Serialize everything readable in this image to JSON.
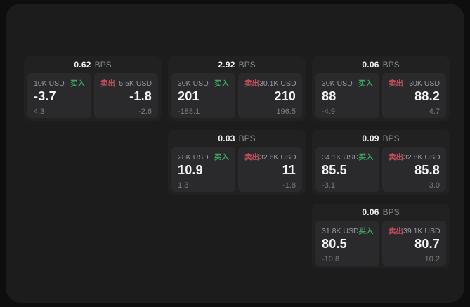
{
  "labels": {
    "bps_suffix": "BPS",
    "buy": "买入",
    "sell": "卖出"
  },
  "colors": {
    "page_bg": "#0e0e0f",
    "surface_bg": "#1c1c1d",
    "card_bg": "#212122",
    "panel_bg": "#2a2a2c",
    "text_primary": "#f5f5f6",
    "text_secondary": "#9a9a9f",
    "text_muted": "#7d7d82",
    "buy_green": "#3fa265",
    "sell_red": "#c14f5e"
  },
  "cards": [
    {
      "row": 1,
      "col": 1,
      "bps": "0.62",
      "buy": {
        "amount": "10K USD",
        "value": "-3.7",
        "delta": "4.3"
      },
      "sell": {
        "amount": "5.5K USD",
        "value": "-1.8",
        "delta": "-2.6"
      }
    },
    {
      "row": 1,
      "col": 2,
      "bps": "2.92",
      "buy": {
        "amount": "30K USD",
        "value": "201",
        "delta": "-188.1"
      },
      "sell": {
        "amount": "30.1K USD",
        "value": "210",
        "delta": "196.5"
      }
    },
    {
      "row": 1,
      "col": 3,
      "bps": "0.06",
      "buy": {
        "amount": "30K USD",
        "value": "88",
        "delta": "-4.9"
      },
      "sell": {
        "amount": "30K USD",
        "value": "88.2",
        "delta": "4.7"
      }
    },
    {
      "row": 2,
      "col": 2,
      "bps": "0.03",
      "buy": {
        "amount": "28K USD",
        "value": "10.9",
        "delta": "1.3"
      },
      "sell": {
        "amount": "32.6K USD",
        "value": "11",
        "delta": "-1.8"
      }
    },
    {
      "row": 2,
      "col": 3,
      "bps": "0.09",
      "buy": {
        "amount": "34.1K USD",
        "value": "85.5",
        "delta": "-3.1"
      },
      "sell": {
        "amount": "32.8K USD",
        "value": "85.8",
        "delta": "3.0"
      }
    },
    {
      "row": 3,
      "col": 3,
      "bps": "0.06",
      "buy": {
        "amount": "31.8K USD",
        "value": "80.5",
        "delta": "-10.8"
      },
      "sell": {
        "amount": "39.1K USD",
        "value": "80.7",
        "delta": "10.2"
      }
    }
  ]
}
